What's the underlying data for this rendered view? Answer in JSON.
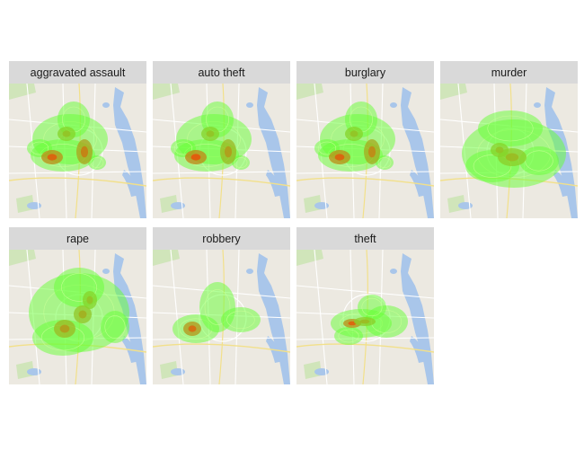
{
  "figure": {
    "type": "faceted density map",
    "colors": {
      "strip": "#d9d9d9",
      "land": "#ece9e1",
      "water": "#a9c6ea",
      "park": "#c9e3b0",
      "road": "#ffffff",
      "highway": "#f2e08a",
      "density_low": "#66ff33",
      "density_high": "#ff3300"
    }
  },
  "chart_data": [
    {
      "type": "heatmap",
      "facet": "aggravated assault",
      "hotspots": [
        {
          "label": "west cluster",
          "level": 0.8
        },
        {
          "label": "central cluster",
          "level": 0.65
        },
        {
          "label": "north spread",
          "level": 0.3
        }
      ]
    },
    {
      "type": "heatmap",
      "facet": "auto theft",
      "hotspots": [
        {
          "label": "west cluster",
          "level": 0.85
        },
        {
          "label": "central cluster",
          "level": 0.5
        },
        {
          "label": "north spread",
          "level": 0.3
        }
      ]
    },
    {
      "type": "heatmap",
      "facet": "burglary",
      "hotspots": [
        {
          "label": "west cluster",
          "level": 0.8
        },
        {
          "label": "central cluster",
          "level": 0.6
        },
        {
          "label": "north spread",
          "level": 0.3
        }
      ]
    },
    {
      "type": "heatmap",
      "facet": "murder",
      "hotspots": [
        {
          "label": "central cluster",
          "level": 0.35
        },
        {
          "label": "broad spread",
          "level": 0.3
        }
      ]
    },
    {
      "type": "heatmap",
      "facet": "rape",
      "hotspots": [
        {
          "label": "west cluster",
          "level": 0.5
        },
        {
          "label": "central cluster",
          "level": 0.4
        },
        {
          "label": "broad spread",
          "level": 0.3
        }
      ]
    },
    {
      "type": "heatmap",
      "facet": "robbery",
      "hotspots": [
        {
          "label": "west cluster",
          "level": 0.75
        },
        {
          "label": "central spread",
          "level": 0.3
        }
      ]
    },
    {
      "type": "heatmap",
      "facet": "theft",
      "hotspots": [
        {
          "label": "central corridor",
          "level": 0.8
        },
        {
          "label": "east spread",
          "level": 0.35
        }
      ]
    }
  ]
}
